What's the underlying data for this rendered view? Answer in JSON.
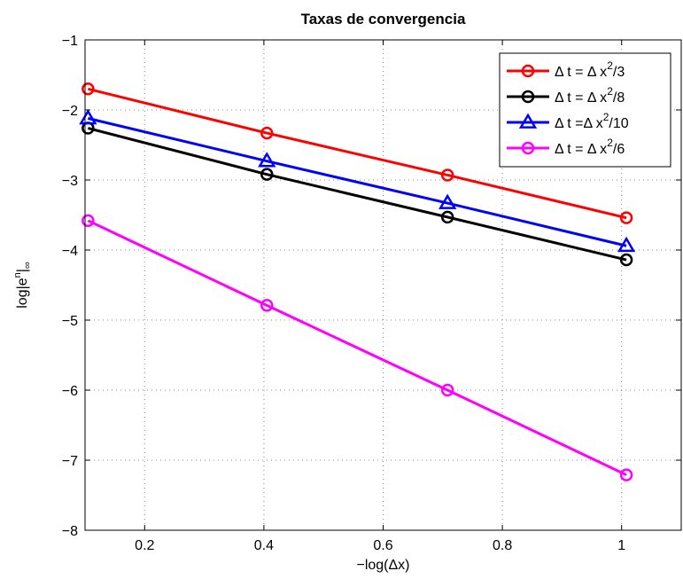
{
  "chart_data": {
    "type": "line",
    "title": "Taxas de convergencia",
    "xlabel": "−log(Δx)",
    "ylabel": "log|e",
    "ylabel_sup": "n",
    "ylabel_tail": "|",
    "ylabel_sub": "∞",
    "xlim": [
      0.1,
      1.1
    ],
    "ylim": [
      -8,
      -1
    ],
    "xticks": [
      0.2,
      0.4,
      0.6,
      0.8,
      1
    ],
    "xtick_labels": [
      "0.2",
      "0.4",
      "0.6",
      "0.8",
      "1"
    ],
    "yticks": [
      -1,
      -2,
      -3,
      -4,
      -5,
      -6,
      -7,
      -8
    ],
    "ytick_labels": [
      "−1",
      "−2",
      "−3",
      "−4",
      "−5",
      "−6",
      "−7",
      "−8"
    ],
    "grid": true,
    "legend_position": "top-right",
    "x": [
      0.105,
      0.405,
      0.708,
      1.008
    ],
    "series": [
      {
        "name": "Δ t = Δ x²/3",
        "label_main": "Δ t = Δ x",
        "label_sup": "2",
        "label_tail": "/3",
        "color": "#ff0000",
        "marker": "circle",
        "values": [
          -1.7,
          -2.33,
          -2.93,
          -3.54
        ]
      },
      {
        "name": "Δ t = Δ x²/8",
        "label_main": "Δ t = Δ x",
        "label_sup": "2",
        "label_tail": "/8",
        "color": "#000000",
        "marker": "circle",
        "values": [
          -2.26,
          -2.92,
          -3.53,
          -4.14
        ]
      },
      {
        "name": "Δ t =Δ x²/10",
        "label_main": "Δ t =Δ x",
        "label_sup": "2",
        "label_tail": "/10",
        "color": "#0000ff",
        "marker": "triangle",
        "values": [
          -2.12,
          -2.73,
          -3.33,
          -3.94
        ]
      },
      {
        "name": "Δ t = Δ x²/6",
        "label_main": "Δ t = Δ x",
        "label_sup": "2",
        "label_tail": "/6",
        "color": "#ff00ff",
        "marker": "circle",
        "values": [
          -3.58,
          -4.79,
          -6.0,
          -7.21
        ]
      }
    ]
  }
}
